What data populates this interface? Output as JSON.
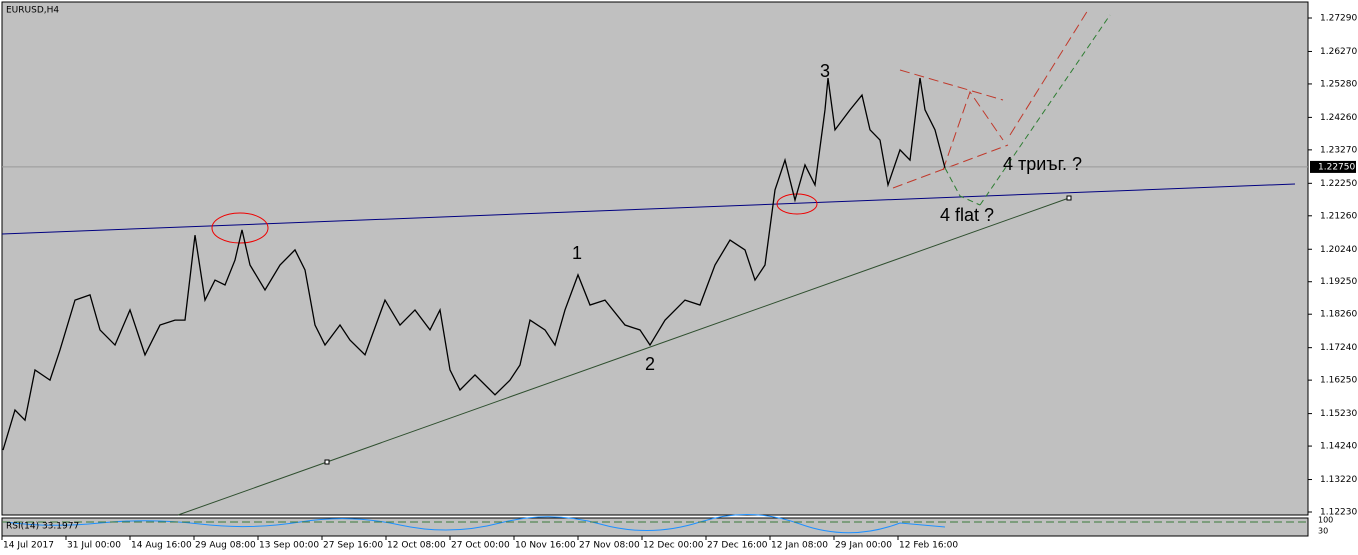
{
  "chart_data": {
    "type": "line",
    "title": "EURUSD,H4",
    "x": [
      1,
      13,
      23,
      33,
      48,
      58,
      73,
      88,
      98,
      113,
      128,
      143,
      158,
      173,
      183,
      193,
      203,
      213,
      223,
      233,
      240,
      248,
      263,
      278,
      293,
      303,
      313,
      323,
      338,
      348,
      363,
      383,
      398,
      413,
      428,
      438,
      448,
      458,
      473,
      493,
      508,
      518,
      528,
      543,
      553,
      563,
      576,
      588,
      603,
      623,
      638,
      648,
      663,
      683,
      698,
      713,
      728,
      743,
      753,
      763,
      773,
      783,
      793,
      803,
      813,
      823,
      826,
      833,
      848,
      860,
      868,
      878,
      886,
      898,
      908,
      918,
      923,
      933,
      943
    ],
    "series": [
      {
        "name": "EURUSD",
        "color": "#000000",
        "values": [
          1.1412,
          1.1534,
          1.1503,
          1.1656,
          1.1625,
          1.1717,
          1.1869,
          1.1885,
          1.1778,
          1.1732,
          1.1839,
          1.1702,
          1.1793,
          1.1808,
          1.1808,
          1.2067,
          1.1869,
          1.193,
          1.1915,
          1.1991,
          1.2083,
          1.1976,
          1.19,
          1.1976,
          1.2022,
          1.1961,
          1.1793,
          1.1732,
          1.1793,
          1.1747,
          1.1702,
          1.1869,
          1.1793,
          1.1839,
          1.1778,
          1.1839,
          1.1656,
          1.1595,
          1.1641,
          1.158,
          1.1625,
          1.1671,
          1.1808,
          1.1778,
          1.1732,
          1.1839,
          1.1946,
          1.1854,
          1.1869,
          1.1793,
          1.1778,
          1.1732,
          1.1808,
          1.1869,
          1.1854,
          1.1976,
          1.2052,
          1.2022,
          1.193,
          1.1976,
          1.2205,
          1.2296,
          1.2174,
          1.2281,
          1.222,
          1.2449,
          1.2546,
          1.2388,
          1.2449,
          1.2494,
          1.2388,
          1.2357,
          1.222,
          1.2327,
          1.2296,
          1.2546,
          1.2449,
          1.2388,
          1.2272
        ]
      }
    ],
    "xlim": [
      0,
      1306
    ],
    "ylim": [
      1.1223,
      1.2729
    ],
    "xticks": [
      {
        "value": 0,
        "label": "14 Jul 2017"
      },
      {
        "value": 64,
        "label": "31 Jul 00:00"
      },
      {
        "value": 128,
        "label": "14 Aug 16:00"
      },
      {
        "value": 192,
        "label": "29 Aug 08:00"
      },
      {
        "value": 256,
        "label": "13 Sep 00:00"
      },
      {
        "value": 320,
        "label": "27 Sep 16:00"
      },
      {
        "value": 384,
        "label": "12 Oct 08:00"
      },
      {
        "value": 448,
        "label": "27 Oct 00:00"
      },
      {
        "value": 512,
        "label": "10 Nov 16:00"
      },
      {
        "value": 576,
        "label": "27 Nov 08:00"
      },
      {
        "value": 640,
        "label": "12 Dec 00:00"
      },
      {
        "value": 704,
        "label": "27 Dec 16:00"
      },
      {
        "value": 768,
        "label": "12 Jan 08:00"
      },
      {
        "value": 832,
        "label": "29 Jan 00:00"
      },
      {
        "value": 896,
        "label": "12 Feb 16:00"
      }
    ],
    "yticks": [
      {
        "value": 1.2729,
        "label": "1.27290"
      },
      {
        "value": 1.2627,
        "label": "1.26270"
      },
      {
        "value": 1.2528,
        "label": "1.25280"
      },
      {
        "value": 1.2426,
        "label": "1.24260"
      },
      {
        "value": 1.2327,
        "label": "1.23270"
      },
      {
        "value": 1.2225,
        "label": "1.22250"
      },
      {
        "value": 1.2126,
        "label": "1.21260"
      },
      {
        "value": 1.2024,
        "label": "1.20240"
      },
      {
        "value": 1.1925,
        "label": "1.19250"
      },
      {
        "value": 1.1826,
        "label": "1.18260"
      },
      {
        "value": 1.1724,
        "label": "1.17240"
      },
      {
        "value": 1.1625,
        "label": "1.16250"
      },
      {
        "value": 1.1523,
        "label": "1.15230"
      },
      {
        "value": 1.1424,
        "label": "1.14240"
      },
      {
        "value": 1.1322,
        "label": "1.13220"
      },
      {
        "value": 1.1223,
        "label": "1.12230"
      }
    ],
    "current_price": {
      "value": 1.2275,
      "label": "1.22750"
    },
    "annotations": [
      "1",
      "2",
      "3",
      "4 flat ?",
      "4 триъг. ?"
    ],
    "rsi": {
      "label": "RSI(14) 33.1977",
      "yticks": [
        100,
        30
      ]
    }
  }
}
